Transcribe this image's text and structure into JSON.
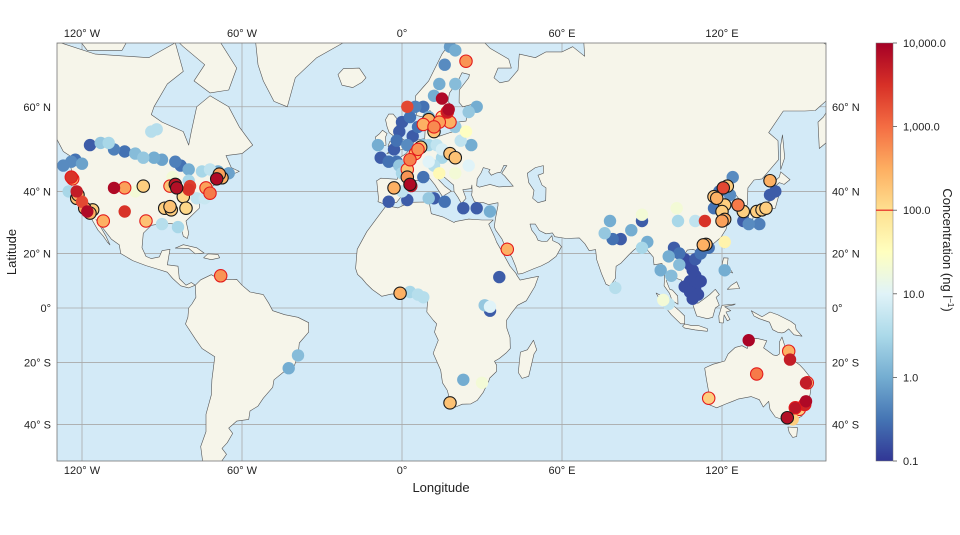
{
  "map": {
    "xlabel": "Longitude",
    "ylabel": "Latitude",
    "lon_ticks": [
      {
        "value": -120,
        "label": "120° W"
      },
      {
        "value": -60,
        "label": "60° W"
      },
      {
        "value": 0,
        "label": "0°"
      },
      {
        "value": 60,
        "label": "60° E"
      },
      {
        "value": 120,
        "label": "120° E"
      }
    ],
    "lat_ticks": [
      {
        "value": 60,
        "label": "60° N"
      },
      {
        "value": 40,
        "label": "40° N"
      },
      {
        "value": 20,
        "label": "20° N"
      },
      {
        "value": 0,
        "label": "0°"
      },
      {
        "value": -20,
        "label": "20° S"
      },
      {
        "value": -40,
        "label": "40° S"
      }
    ],
    "lon_range": [
      -129.8,
      159
    ],
    "lat_range": [
      -50,
      70
    ],
    "colors": {
      "ocean": "#d3eaf7",
      "land": "#f6f5ea",
      "threshold_line": "#e31a1c"
    }
  },
  "colorbar": {
    "label": "Concentration (ng l",
    "label_sup": "−1",
    "label_end": ")",
    "scale": "log",
    "range": [
      0.1,
      10000
    ],
    "threshold": 100,
    "ticks": [
      {
        "value": 10000,
        "label": "10,000.0"
      },
      {
        "value": 1000,
        "label": "1,000.0"
      },
      {
        "value": 100,
        "label": "100.0"
      },
      {
        "value": 10,
        "label": "10.0"
      },
      {
        "value": 1,
        "label": "1.0"
      },
      {
        "value": 0.1,
        "label": "0.1"
      }
    ],
    "colormap": [
      "#313695",
      "#4575b4",
      "#74add1",
      "#abd9e9",
      "#e0f3f8",
      "#ffffbf",
      "#fee090",
      "#fdae61",
      "#f46d43",
      "#d73027",
      "#a50026"
    ]
  },
  "points_format": [
    "lon",
    "lat",
    "concentration_ng_per_l",
    "edge (k=black, r=red)"
  ],
  "points": [
    [
      -124,
      48,
      0.5,
      ""
    ],
    [
      -122.5,
      48.5,
      0.3,
      ""
    ],
    [
      -120,
      47.5,
      0.8,
      ""
    ],
    [
      -117,
      52,
      0.2,
      ""
    ],
    [
      -113,
      52.5,
      2,
      ""
    ],
    [
      -110,
      52.5,
      3,
      ""
    ],
    [
      -108,
      51,
      0.4,
      ""
    ],
    [
      -104,
      50.5,
      0.3,
      ""
    ],
    [
      -100,
      50,
      1.5,
      ""
    ],
    [
      -97,
      49,
      2,
      ""
    ],
    [
      -93,
      49,
      1,
      ""
    ],
    [
      -90,
      48.5,
      0.8,
      ""
    ],
    [
      -85,
      48,
      0.4,
      ""
    ],
    [
      -83,
      47,
      0.3,
      ""
    ],
    [
      -80,
      46,
      1,
      ""
    ],
    [
      -75,
      45.5,
      3,
      ""
    ],
    [
      -72,
      46,
      5,
      ""
    ],
    [
      -69,
      45.5,
      1,
      ""
    ],
    [
      -65,
      45,
      0.8,
      ""
    ],
    [
      -94,
      55,
      4,
      ""
    ],
    [
      -92,
      55.5,
      4,
      ""
    ],
    [
      -127,
      47,
      0.5,
      ""
    ],
    [
      -125,
      40,
      3,
      ""
    ],
    [
      -77,
      38,
      5,
      ""
    ],
    [
      -74,
      38,
      6,
      ""
    ],
    [
      -86,
      44,
      20,
      ""
    ],
    [
      -84,
      29,
      3,
      ""
    ],
    [
      -90,
      30,
      4,
      ""
    ],
    [
      -100,
      40,
      20,
      ""
    ],
    [
      -80,
      43,
      3,
      ""
    ],
    [
      -124,
      44,
      3000,
      "r"
    ],
    [
      -123.5,
      43.5,
      300,
      "r"
    ],
    [
      -122,
      40,
      5000,
      ""
    ],
    [
      -121.5,
      39,
      300,
      "k"
    ],
    [
      -122,
      38,
      200,
      "k"
    ],
    [
      -120,
      37,
      2000,
      ""
    ],
    [
      -119,
      35,
      400,
      "k"
    ],
    [
      -118,
      34,
      8000,
      ""
    ],
    [
      -117,
      33.5,
      300,
      "k"
    ],
    [
      -116,
      34.5,
      150,
      "k"
    ],
    [
      -112,
      31,
      300,
      "r"
    ],
    [
      -108,
      41,
      8000,
      ""
    ],
    [
      -104,
      41,
      400,
      "r"
    ],
    [
      -97,
      41.5,
      150,
      "k"
    ],
    [
      -104,
      34,
      3000,
      ""
    ],
    [
      -96,
      31,
      200,
      "r"
    ],
    [
      -87,
      41.5,
      200,
      "r"
    ],
    [
      -85,
      42,
      6000,
      "k"
    ],
    [
      -84.5,
      41,
      7000,
      "k"
    ],
    [
      -82,
      38.5,
      120,
      "k"
    ],
    [
      -80,
      40.5,
      3000,
      ""
    ],
    [
      -79.5,
      41.5,
      2500,
      ""
    ],
    [
      -73.5,
      41,
      400,
      "r"
    ],
    [
      -72,
      39.5,
      800,
      "r"
    ],
    [
      -69.5,
      43.5,
      8000,
      "k"
    ],
    [
      -68.5,
      44.8,
      400,
      "k"
    ],
    [
      -67.5,
      43.8,
      300,
      "k"
    ],
    [
      -89,
      35,
      150,
      "k"
    ],
    [
      -87,
      35.5,
      200,
      "k"
    ],
    [
      -86.5,
      34.5,
      150,
      "k"
    ],
    [
      -81,
      35,
      120,
      "k"
    ],
    [
      -68,
      12,
      500,
      "r"
    ],
    [
      -42.5,
      -22,
      1,
      ""
    ],
    [
      -39,
      -17.5,
      1.5,
      ""
    ],
    [
      -9,
      52,
      1,
      ""
    ],
    [
      -8,
      49,
      0.2,
      ""
    ],
    [
      -5,
      48,
      0.3,
      ""
    ],
    [
      -3,
      51,
      0.2,
      ""
    ],
    [
      -2,
      53,
      0.3,
      ""
    ],
    [
      -1,
      55,
      0.2,
      ""
    ],
    [
      0,
      57,
      0.2,
      ""
    ],
    [
      3,
      58,
      0.3,
      ""
    ],
    [
      5,
      60,
      0.4,
      ""
    ],
    [
      8,
      60,
      0.3,
      ""
    ],
    [
      10,
      58,
      1,
      ""
    ],
    [
      12,
      62,
      1,
      ""
    ],
    [
      14,
      64,
      1,
      ""
    ],
    [
      16,
      67,
      0.5,
      ""
    ],
    [
      18,
      69.5,
      0.7,
      ""
    ],
    [
      20,
      69,
      1,
      ""
    ],
    [
      20,
      64,
      1.5,
      ""
    ],
    [
      8,
      52,
      1.5,
      ""
    ],
    [
      10,
      52,
      3,
      ""
    ],
    [
      13,
      52,
      5,
      ""
    ],
    [
      15,
      51,
      8,
      ""
    ],
    [
      0,
      40,
      5,
      ""
    ],
    [
      -5,
      37,
      0.2,
      ""
    ],
    [
      2,
      37.5,
      0.2,
      ""
    ],
    [
      10,
      38,
      2,
      ""
    ],
    [
      12,
      38,
      0.2,
      ""
    ],
    [
      16,
      37,
      0.3,
      ""
    ],
    [
      23,
      35,
      0.2,
      ""
    ],
    [
      28,
      35,
      0.2,
      ""
    ],
    [
      33,
      34,
      1,
      ""
    ],
    [
      8,
      44,
      0.3,
      ""
    ],
    [
      14,
      45,
      40,
      ""
    ],
    [
      20,
      45,
      20,
      ""
    ],
    [
      25,
      47,
      10,
      ""
    ],
    [
      0,
      45,
      3,
      ""
    ],
    [
      -1,
      47,
      2,
      ""
    ],
    [
      24,
      55,
      30,
      ""
    ],
    [
      26,
      52,
      1,
      ""
    ],
    [
      22,
      53,
      5,
      ""
    ],
    [
      20,
      56,
      2,
      ""
    ],
    [
      25,
      59,
      2,
      ""
    ],
    [
      28,
      60,
      1,
      ""
    ],
    [
      -2,
      48,
      0.3,
      ""
    ],
    [
      10,
      48,
      10,
      ""
    ],
    [
      12,
      47,
      4,
      ""
    ],
    [
      15,
      49,
      3,
      ""
    ],
    [
      4,
      54,
      0.2,
      ""
    ],
    [
      6,
      56,
      0.3,
      ""
    ],
    [
      2,
      52,
      0.5,
      ""
    ],
    [
      24,
      67.5,
      500,
      "r"
    ],
    [
      15,
      61.5,
      8000,
      ""
    ],
    [
      10,
      57.5,
      300,
      "k"
    ],
    [
      2,
      60,
      2000,
      ""
    ],
    [
      8,
      56.5,
      300,
      "r"
    ],
    [
      12,
      56,
      600,
      "r"
    ],
    [
      14,
      57,
      400,
      "r"
    ],
    [
      17,
      59,
      5000,
      "r"
    ],
    [
      17.5,
      59.5,
      8000,
      ""
    ],
    [
      15,
      58,
      120,
      "r"
    ],
    [
      18,
      57,
      300,
      "r"
    ],
    [
      12,
      55,
      200,
      "k"
    ],
    [
      6,
      51,
      500,
      "r"
    ],
    [
      7,
      51.5,
      200,
      "k"
    ],
    [
      5,
      50,
      300,
      "r"
    ],
    [
      18,
      50,
      200,
      "k"
    ],
    [
      20,
      49,
      200,
      "k"
    ],
    [
      3,
      48.5,
      700,
      "r"
    ],
    [
      2,
      46,
      200,
      "r"
    ],
    [
      2,
      44,
      500,
      "k"
    ],
    [
      3,
      42,
      8000,
      "k"
    ],
    [
      3.5,
      41.5,
      6000,
      ""
    ],
    [
      -3,
      41,
      300,
      "k"
    ],
    [
      39.5,
      21.5,
      300,
      "r"
    ],
    [
      36.5,
      11.5,
      0.2,
      ""
    ],
    [
      31,
      1,
      2,
      ""
    ],
    [
      33,
      0.5,
      10,
      ""
    ],
    [
      33,
      -1,
      0.2,
      ""
    ],
    [
      -0.7,
      5.5,
      300,
      "k"
    ],
    [
      3,
      6,
      3,
      ""
    ],
    [
      6,
      5,
      4,
      ""
    ],
    [
      8,
      4,
      4,
      ""
    ],
    [
      18,
      -33.5,
      200,
      "k"
    ],
    [
      23,
      -26,
      1,
      ""
    ],
    [
      30,
      -27,
      20,
      ""
    ],
    [
      78,
      31,
      1,
      ""
    ],
    [
      90,
      31,
      0.2,
      ""
    ],
    [
      82,
      25,
      0.2,
      ""
    ],
    [
      79,
      25,
      0.3,
      ""
    ],
    [
      90,
      22,
      3,
      ""
    ],
    [
      86,
      28,
      1,
      ""
    ],
    [
      92,
      24,
      1,
      ""
    ],
    [
      80,
      7.5,
      4,
      ""
    ],
    [
      76,
      27,
      2,
      ""
    ],
    [
      103.5,
      31,
      3,
      ""
    ],
    [
      103,
      35,
      20,
      ""
    ],
    [
      90,
      33,
      20,
      ""
    ],
    [
      110,
      31,
      5,
      ""
    ],
    [
      113.6,
      31,
      3000,
      ""
    ],
    [
      120.5,
      41,
      2000,
      "k"
    ],
    [
      122,
      41.5,
      150,
      "k"
    ],
    [
      117,
      38.5,
      200,
      "k"
    ],
    [
      118,
      38,
      300,
      "k"
    ],
    [
      121,
      36,
      150,
      "k"
    ],
    [
      120,
      34,
      150,
      "k"
    ],
    [
      120,
      31,
      400,
      "k"
    ],
    [
      121,
      31.5,
      300,
      "k"
    ],
    [
      113,
      23,
      300,
      "k"
    ],
    [
      114,
      23.2,
      250,
      "k"
    ],
    [
      121,
      24,
      50,
      ""
    ],
    [
      126,
      36,
      800,
      "k"
    ],
    [
      128,
      34,
      150,
      "k"
    ],
    [
      133,
      34,
      150,
      "k"
    ],
    [
      135,
      34.5,
      150,
      "k"
    ],
    [
      136.5,
      35,
      150,
      "k"
    ],
    [
      138,
      43,
      300,
      "k"
    ],
    [
      138,
      39,
      0.2,
      ""
    ],
    [
      140,
      40,
      0.2,
      ""
    ],
    [
      124,
      44,
      0.5,
      ""
    ],
    [
      130,
      30,
      0.5,
      ""
    ],
    [
      134,
      30,
      0.4,
      ""
    ],
    [
      128,
      31,
      0.2,
      ""
    ],
    [
      119,
      40,
      0.3,
      ""
    ],
    [
      117,
      35,
      0.3,
      ""
    ],
    [
      123,
      39,
      0.5,
      ""
    ],
    [
      102,
      22,
      0.2,
      ""
    ],
    [
      104,
      20,
      0.3,
      ""
    ],
    [
      106,
      18,
      0.15,
      ""
    ],
    [
      108,
      16,
      0.15,
      ""
    ],
    [
      109,
      14,
      0.15,
      ""
    ],
    [
      110,
      12,
      0.15,
      ""
    ],
    [
      108,
      10,
      0.15,
      ""
    ],
    [
      106,
      8,
      0.15,
      ""
    ],
    [
      110,
      8,
      0.15,
      ""
    ],
    [
      108,
      6,
      0.15,
      ""
    ],
    [
      111,
      5,
      0.15,
      ""
    ],
    [
      109,
      3.5,
      0.15,
      ""
    ],
    [
      112,
      10,
      0.15,
      ""
    ],
    [
      110,
      18,
      0.2,
      ""
    ],
    [
      112,
      20,
      0.3,
      ""
    ],
    [
      100,
      19,
      1,
      ""
    ],
    [
      104,
      16,
      1.5,
      ""
    ],
    [
      97,
      14,
      1,
      ""
    ],
    [
      101,
      12,
      1.5,
      ""
    ],
    [
      121,
      14,
      1,
      ""
    ],
    [
      98,
      3,
      20,
      ""
    ],
    [
      100,
      1.5,
      5,
      ""
    ],
    [
      115,
      22,
      0.3,
      ""
    ],
    [
      130,
      -12,
      9000,
      ""
    ],
    [
      145,
      -16,
      300,
      "r"
    ],
    [
      145.5,
      -19,
      5000,
      ""
    ],
    [
      133,
      -24,
      800,
      "r"
    ],
    [
      115,
      -32,
      150,
      "r"
    ],
    [
      151.5,
      -27,
      5000,
      ""
    ],
    [
      152,
      -27,
      150,
      "r"
    ],
    [
      151.5,
      -33,
      8000,
      ""
    ],
    [
      151,
      -34,
      4000,
      "r"
    ],
    [
      147.5,
      -35,
      6000,
      "r"
    ],
    [
      149,
      -35.5,
      150,
      "r"
    ],
    [
      144.5,
      -38,
      7000,
      "k"
    ],
    [
      146.5,
      -38.5,
      150,
      ""
    ]
  ]
}
